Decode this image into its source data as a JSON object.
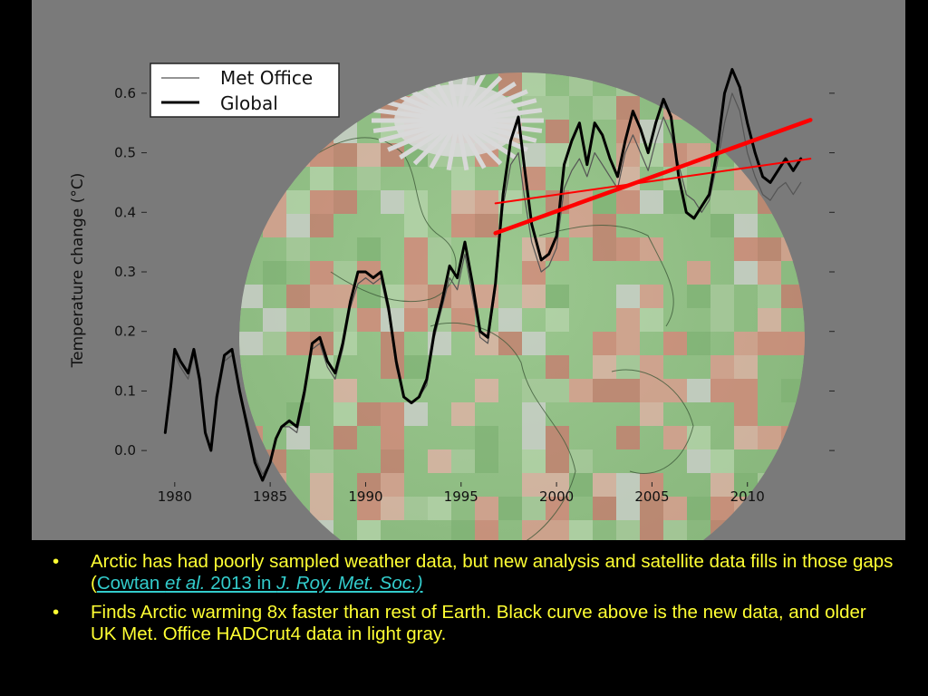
{
  "chart_data": {
    "type": "line",
    "xlabel": "",
    "ylabel": "Temperature change (°C)",
    "xlim": [
      1978.3,
      2014
    ],
    "ylim": [
      -0.05,
      0.65
    ],
    "x_ticks": [
      1980,
      1985,
      1990,
      1995,
      2000,
      2005,
      2010
    ],
    "y_ticks": [
      0.0,
      0.1,
      0.2,
      0.3,
      0.4,
      0.5,
      0.6
    ],
    "y_tick_labels": [
      "0.0",
      "0.1",
      "0.2",
      "0.3",
      "0.4",
      "0.5",
      "0.6"
    ],
    "legend": {
      "position": "top-left",
      "entries": [
        "Met Office",
        "Global"
      ]
    },
    "series": [
      {
        "name": "Met Office",
        "color": "#555555",
        "x": [
          1979.5,
          1979.8,
          1980,
          1980.3,
          1980.7,
          1981,
          1981.3,
          1981.6,
          1981.9,
          1982.2,
          1982.6,
          1983,
          1983.4,
          1983.8,
          1984.2,
          1984.6,
          1985,
          1985.3,
          1985.6,
          1986,
          1986.4,
          1986.8,
          1987.2,
          1987.6,
          1988,
          1988.4,
          1988.8,
          1989.2,
          1989.6,
          1990,
          1990.4,
          1990.8,
          1991.2,
          1991.6,
          1992,
          1992.4,
          1992.8,
          1993.2,
          1993.6,
          1994,
          1994.4,
          1994.8,
          1995.2,
          1995.6,
          1996,
          1996.4,
          1996.8,
          1997.2,
          1997.6,
          1998,
          1998.3,
          1998.7,
          1999.2,
          1999.6,
          2000,
          2000.4,
          2000.8,
          2001.2,
          2001.6,
          2002,
          2002.4,
          2002.8,
          2003.2,
          2003.6,
          2004,
          2004.4,
          2004.8,
          2005.2,
          2005.6,
          2006,
          2006.4,
          2006.8,
          2007.2,
          2007.6,
          2008,
          2008.4,
          2008.8,
          2009.2,
          2009.6,
          2010,
          2010.4,
          2010.8,
          2011.2,
          2011.6,
          2012,
          2012.4,
          2012.8
        ],
        "y": [
          0.03,
          0.1,
          0.16,
          0.14,
          0.12,
          0.16,
          0.11,
          0.03,
          0.0,
          0.08,
          0.15,
          0.16,
          0.1,
          0.05,
          -0.01,
          -0.04,
          -0.02,
          0.02,
          0.04,
          0.04,
          0.03,
          0.09,
          0.17,
          0.18,
          0.14,
          0.12,
          0.17,
          0.24,
          0.28,
          0.29,
          0.28,
          0.29,
          0.23,
          0.14,
          0.09,
          0.08,
          0.09,
          0.11,
          0.19,
          0.24,
          0.29,
          0.27,
          0.33,
          0.26,
          0.19,
          0.18,
          0.27,
          0.41,
          0.48,
          0.5,
          0.43,
          0.35,
          0.3,
          0.31,
          0.34,
          0.44,
          0.47,
          0.49,
          0.46,
          0.5,
          0.48,
          0.46,
          0.44,
          0.5,
          0.53,
          0.5,
          0.47,
          0.52,
          0.56,
          0.53,
          0.48,
          0.43,
          0.42,
          0.4,
          0.42,
          0.48,
          0.55,
          0.6,
          0.57,
          0.5,
          0.46,
          0.43,
          0.42,
          0.44,
          0.45,
          0.43,
          0.45
        ]
      },
      {
        "name": "Global",
        "color": "#000000",
        "x": [
          1979.5,
          1979.8,
          1980,
          1980.3,
          1980.7,
          1981,
          1981.3,
          1981.6,
          1981.9,
          1982.2,
          1982.6,
          1983,
          1983.4,
          1983.8,
          1984.2,
          1984.6,
          1985,
          1985.3,
          1985.6,
          1986,
          1986.4,
          1986.8,
          1987.2,
          1987.6,
          1988,
          1988.4,
          1988.8,
          1989.2,
          1989.6,
          1990,
          1990.4,
          1990.8,
          1991.2,
          1991.6,
          1992,
          1992.4,
          1992.8,
          1993.2,
          1993.6,
          1994,
          1994.4,
          1994.8,
          1995.2,
          1995.6,
          1996,
          1996.4,
          1996.8,
          1997.2,
          1997.6,
          1998,
          1998.3,
          1998.7,
          1999.2,
          1999.6,
          2000,
          2000.4,
          2000.8,
          2001.2,
          2001.6,
          2002,
          2002.4,
          2002.8,
          2003.2,
          2003.6,
          2004,
          2004.4,
          2004.8,
          2005.2,
          2005.6,
          2006,
          2006.4,
          2006.8,
          2007.2,
          2007.6,
          2008,
          2008.4,
          2008.8,
          2009.2,
          2009.6,
          2010,
          2010.4,
          2010.8,
          2011.2,
          2011.6,
          2012,
          2012.4,
          2012.8
        ],
        "y": [
          0.03,
          0.11,
          0.17,
          0.15,
          0.13,
          0.17,
          0.12,
          0.03,
          0.0,
          0.09,
          0.16,
          0.17,
          0.1,
          0.04,
          -0.02,
          -0.05,
          -0.02,
          0.02,
          0.04,
          0.05,
          0.04,
          0.1,
          0.18,
          0.19,
          0.15,
          0.13,
          0.18,
          0.25,
          0.3,
          0.3,
          0.29,
          0.3,
          0.24,
          0.15,
          0.09,
          0.08,
          0.09,
          0.12,
          0.2,
          0.25,
          0.31,
          0.29,
          0.35,
          0.28,
          0.2,
          0.19,
          0.28,
          0.43,
          0.52,
          0.56,
          0.48,
          0.38,
          0.32,
          0.33,
          0.36,
          0.48,
          0.52,
          0.55,
          0.48,
          0.55,
          0.53,
          0.49,
          0.46,
          0.52,
          0.57,
          0.54,
          0.5,
          0.55,
          0.59,
          0.56,
          0.46,
          0.4,
          0.39,
          0.41,
          0.43,
          0.5,
          0.6,
          0.64,
          0.61,
          0.55,
          0.5,
          0.46,
          0.45,
          0.47,
          0.49,
          0.47,
          0.49
        ]
      },
      {
        "name": "",
        "color": "#ff0000",
        "x": [
          1996.8,
          2013.3
        ],
        "y": [
          0.365,
          0.555
        ]
      },
      {
        "name": "",
        "color": "#ff0000",
        "x": [
          1996.8,
          2013.3
        ],
        "y": [
          0.415,
          0.49
        ]
      }
    ]
  },
  "bullets": [
    {
      "marker": "•",
      "text": "Arctic has had poorly sampled weather data, but new analysis and satellite data fills in those gaps (",
      "link_a": "Cowtan ",
      "link_b": "et al.",
      "link_c": " 2013 in ",
      "link_d": "J. Roy. Met. Soc.)"
    },
    {
      "marker": "•",
      "text": "Finds Arctic warming 8x faster than rest of Earth. Black curve above is the new data, and older UK Met. Office HADCrut4 data in light gray."
    }
  ],
  "colors": {
    "bullet_text": "#ffff33",
    "link": "#33cccc",
    "plot_background": "#7a7a7a",
    "globe_base": "#8fbf84"
  }
}
